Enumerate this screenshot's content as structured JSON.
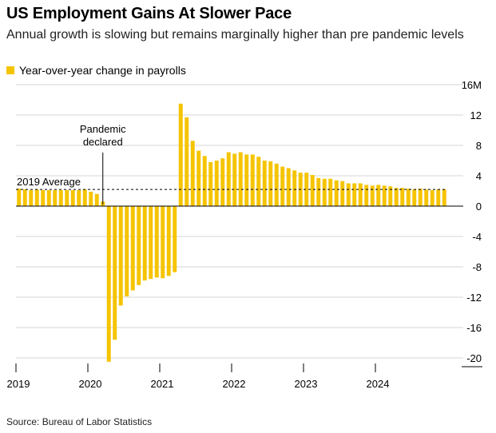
{
  "header": {
    "title": "US Employment Gains At Slower Pace",
    "subtitle": "Annual growth is slowing but remains marginally higher than pre pandemic levels"
  },
  "legend": {
    "label": "Year-over-year change in payrolls"
  },
  "source": "Source: Bureau of Labor Statistics",
  "colors": {
    "bar": "#f5c400",
    "grid": "#d6d6d6",
    "axis": "#000000"
  },
  "chart_data": {
    "type": "bar",
    "ylim": [
      -20,
      16
    ],
    "y_ticks": [
      16,
      12,
      8,
      4,
      0,
      -4,
      -8,
      -12,
      -16,
      -20
    ],
    "y_tick_labels": [
      "16M",
      "12",
      "8",
      "4",
      "0",
      "-4",
      "-8",
      "-12",
      "-16",
      "-20"
    ],
    "y_axis_side": "right",
    "grid": true,
    "x_tick_labels": [
      "2019",
      "2020",
      "2021",
      "2022",
      "2023",
      "2024"
    ],
    "x_start": "2019-01",
    "series": [
      {
        "name": "Year-over-year change in payrolls",
        "values": [
          2.3,
          2.2,
          2.1,
          2.2,
          2.1,
          2.1,
          2.1,
          2.1,
          2.1,
          2.1,
          2.1,
          2.2,
          1.9,
          1.6,
          0.6,
          -20.5,
          -17.6,
          -13.1,
          -11.9,
          -11.1,
          -10.4,
          -9.8,
          -9.6,
          -9.4,
          -9.5,
          -9.2,
          -8.7,
          13.5,
          11.7,
          8.6,
          7.3,
          6.6,
          5.8,
          6.0,
          6.3,
          7.1,
          6.9,
          7.1,
          6.8,
          6.8,
          6.5,
          6.0,
          5.9,
          5.6,
          5.2,
          5.0,
          4.7,
          4.4,
          4.4,
          4.1,
          3.7,
          3.6,
          3.6,
          3.4,
          3.3,
          3.0,
          3.0,
          3.0,
          2.8,
          2.7,
          2.8,
          2.7,
          2.6,
          2.4,
          2.4,
          2.3,
          2.2,
          2.3,
          2.2,
          2.1,
          2.2,
          2.2
        ]
      }
    ],
    "reference_line": {
      "label": "2019 Average",
      "value": 2.2
    },
    "annotation": {
      "lines": [
        "Pandemic",
        "declared"
      ],
      "x": "2020-03"
    }
  }
}
